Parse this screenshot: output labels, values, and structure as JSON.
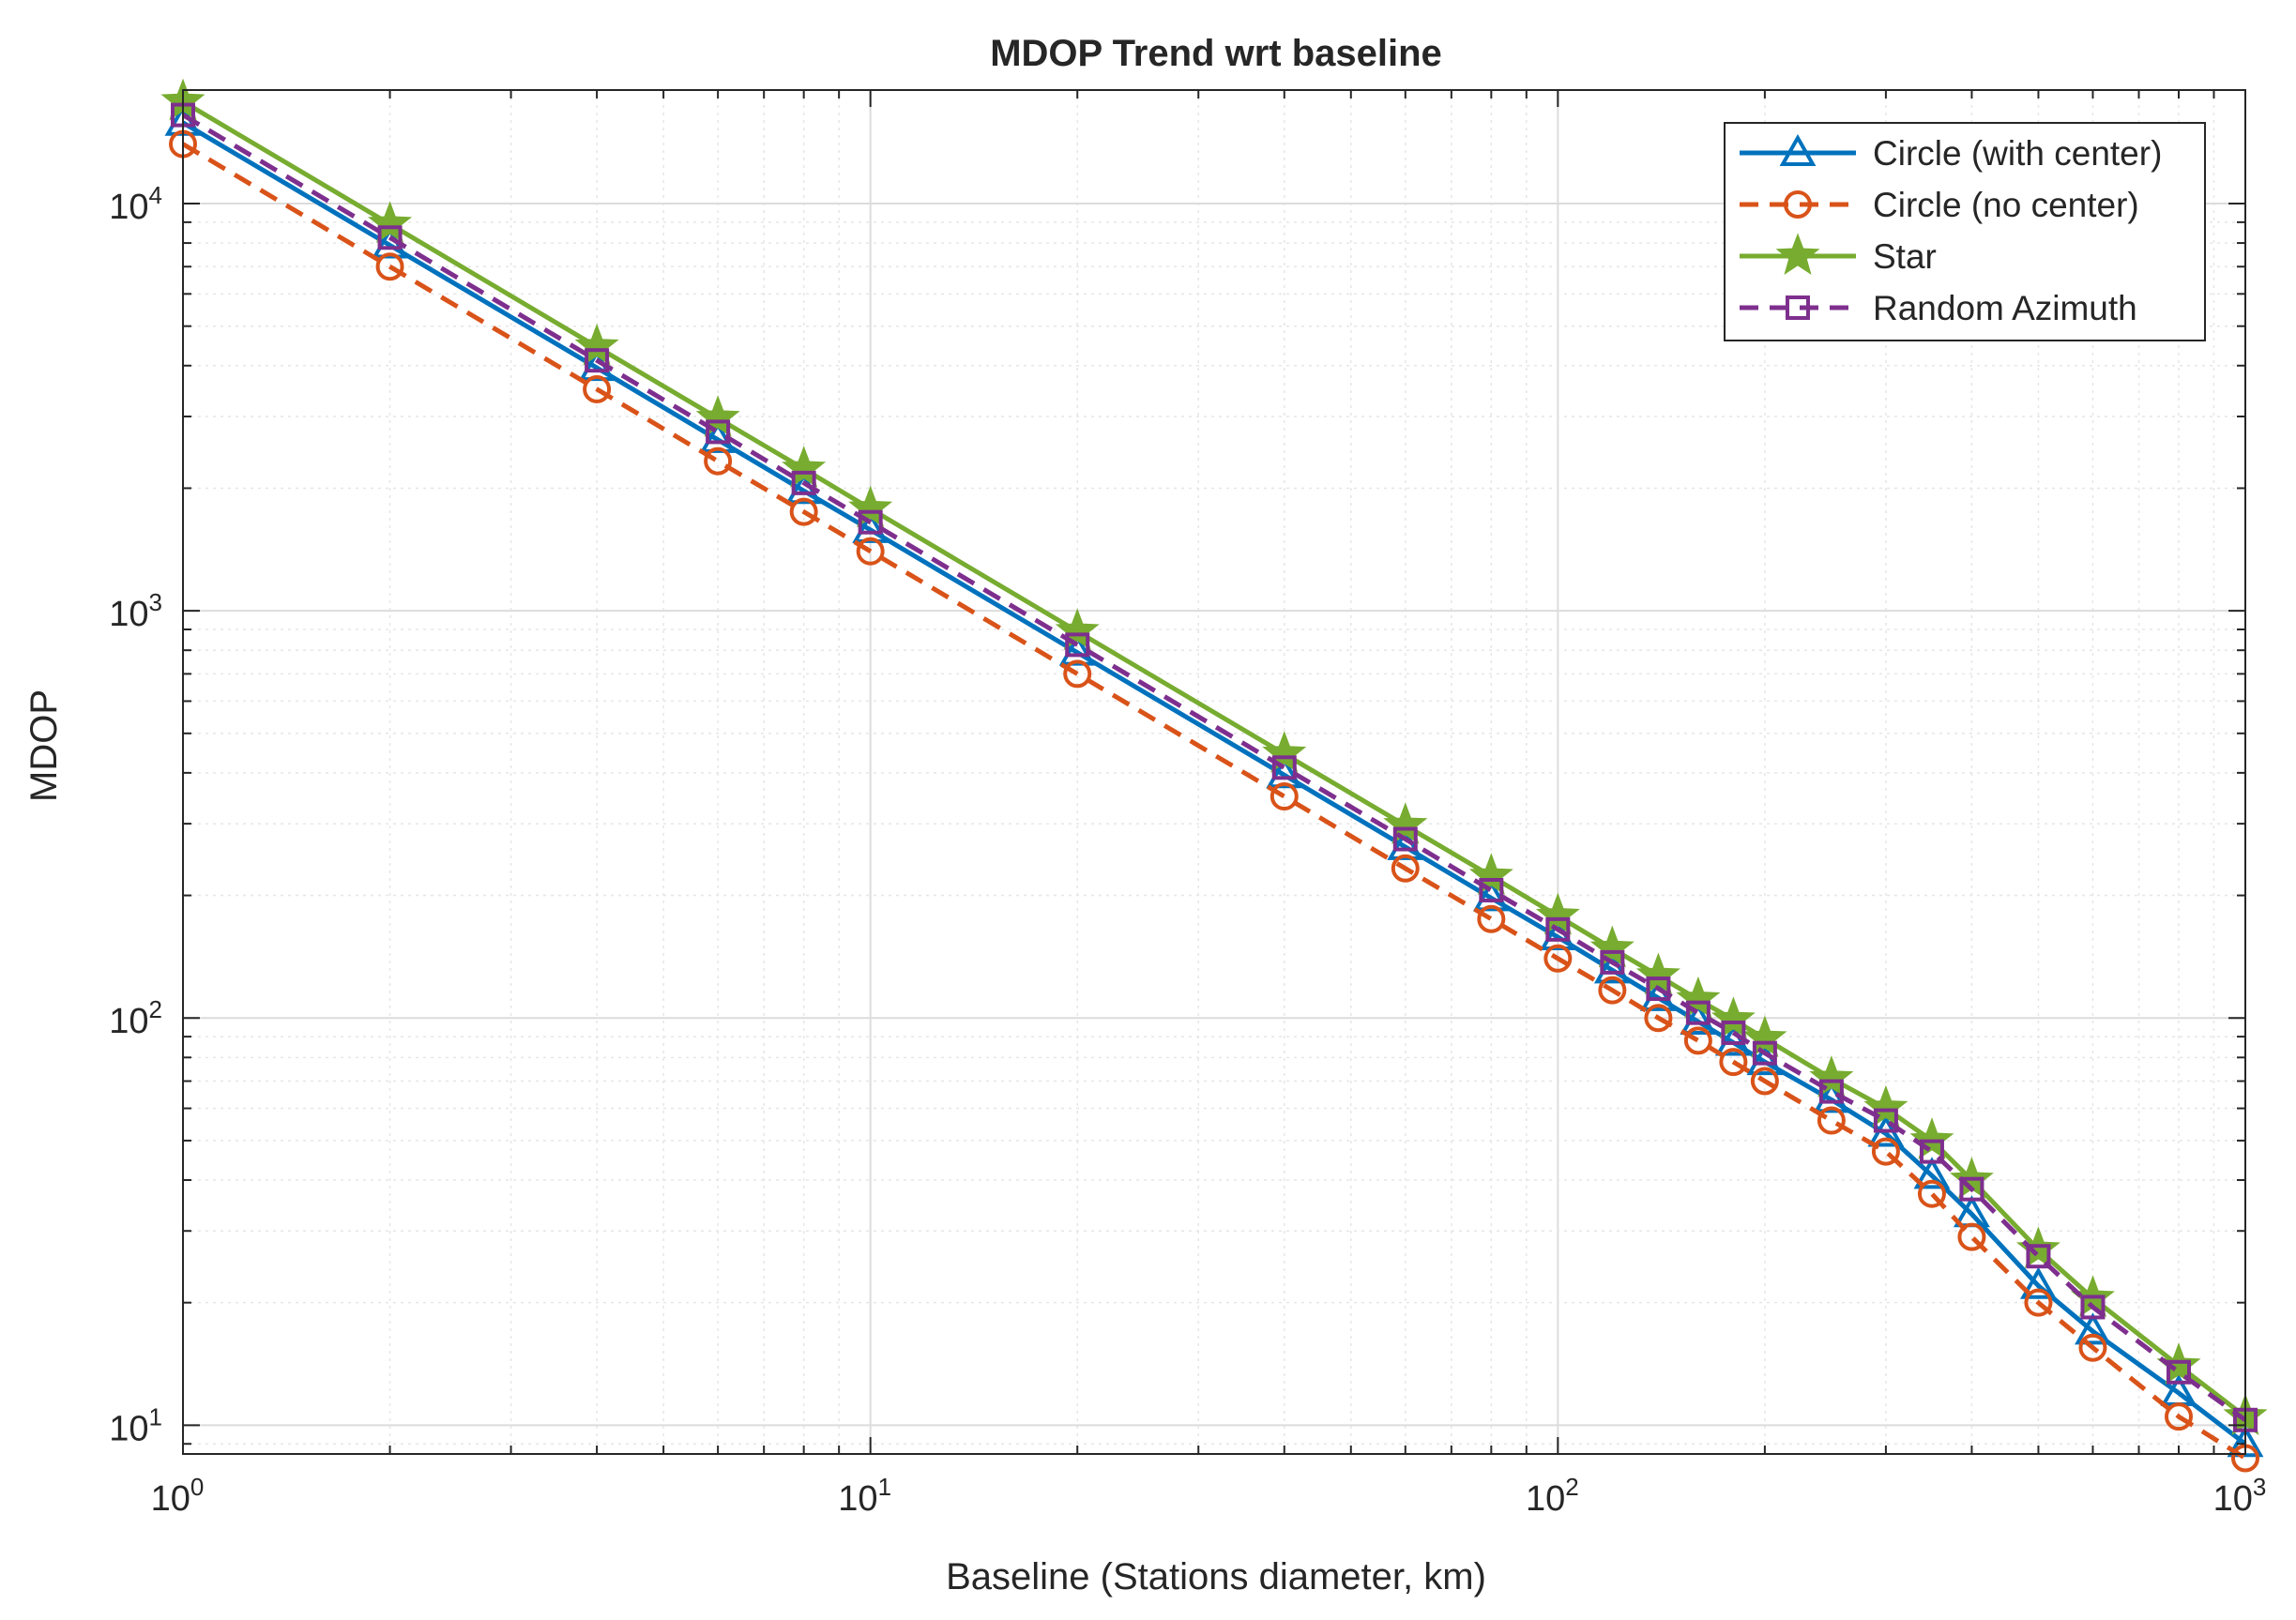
{
  "chart_data": {
    "type": "line",
    "title": "MDOP Trend wrt baseline",
    "xlabel": "Baseline (Stations diameter, km)",
    "ylabel": "MDOP",
    "xscale": "log",
    "yscale": "log",
    "xlim": [
      1,
      1000
    ],
    "ylim": [
      8.5,
      19000
    ],
    "grid": true,
    "minor_grid": true,
    "legend_position": "top-right",
    "x_tick_labels": [
      {
        "base": "10",
        "exp": "0"
      },
      {
        "base": "10",
        "exp": "1"
      },
      {
        "base": "10",
        "exp": "2"
      },
      {
        "base": "10",
        "exp": "3"
      }
    ],
    "y_tick_labels": [
      {
        "base": "10",
        "exp": "1"
      },
      {
        "base": "10",
        "exp": "2"
      },
      {
        "base": "10",
        "exp": "3"
      },
      {
        "base": "10",
        "exp": "4"
      }
    ],
    "x": [
      1,
      2,
      4,
      6,
      8,
      10,
      20,
      40,
      60,
      80,
      100,
      120,
      140,
      160,
      180,
      200,
      250,
      300,
      350,
      400,
      500,
      600,
      800,
      1000
    ],
    "series": [
      {
        "name": "Circle (with center)",
        "color": "#0072BD",
        "dash": "solid",
        "marker": "triangle",
        "values": [
          15800,
          7900,
          3950,
          2630,
          1970,
          1580,
          790,
          395,
          263,
          197,
          158,
          131,
          112,
          98,
          87,
          78,
          63,
          52,
          41,
          33,
          22,
          17,
          12,
          9
        ]
      },
      {
        "name": "Circle (no center)",
        "color": "#D95319",
        "dash": "dashed",
        "marker": "circle",
        "values": [
          14000,
          7000,
          3500,
          2330,
          1750,
          1400,
          700,
          350,
          233,
          175,
          140,
          117,
          100,
          88,
          78,
          70,
          56,
          47,
          37,
          29,
          20,
          15.5,
          10.5,
          8.3
        ]
      },
      {
        "name": "Star",
        "color": "#77AC30",
        "dash": "solid",
        "marker": "star",
        "values": [
          17800,
          8900,
          4450,
          2970,
          2230,
          1780,
          890,
          445,
          297,
          223,
          178,
          148,
          127,
          111,
          99,
          89,
          71,
          60,
          50,
          40,
          27,
          20.5,
          14,
          10.5
        ]
      },
      {
        "name": "Random Azimuth",
        "color": "#7E2F8E",
        "dash": "dashed",
        "marker": "square",
        "values": [
          16500,
          8250,
          4120,
          2750,
          2060,
          1650,
          825,
          412,
          275,
          206,
          165,
          137,
          118,
          103,
          92,
          82,
          66,
          56,
          47,
          38,
          26,
          19.5,
          13.5,
          10.3
        ]
      }
    ]
  }
}
